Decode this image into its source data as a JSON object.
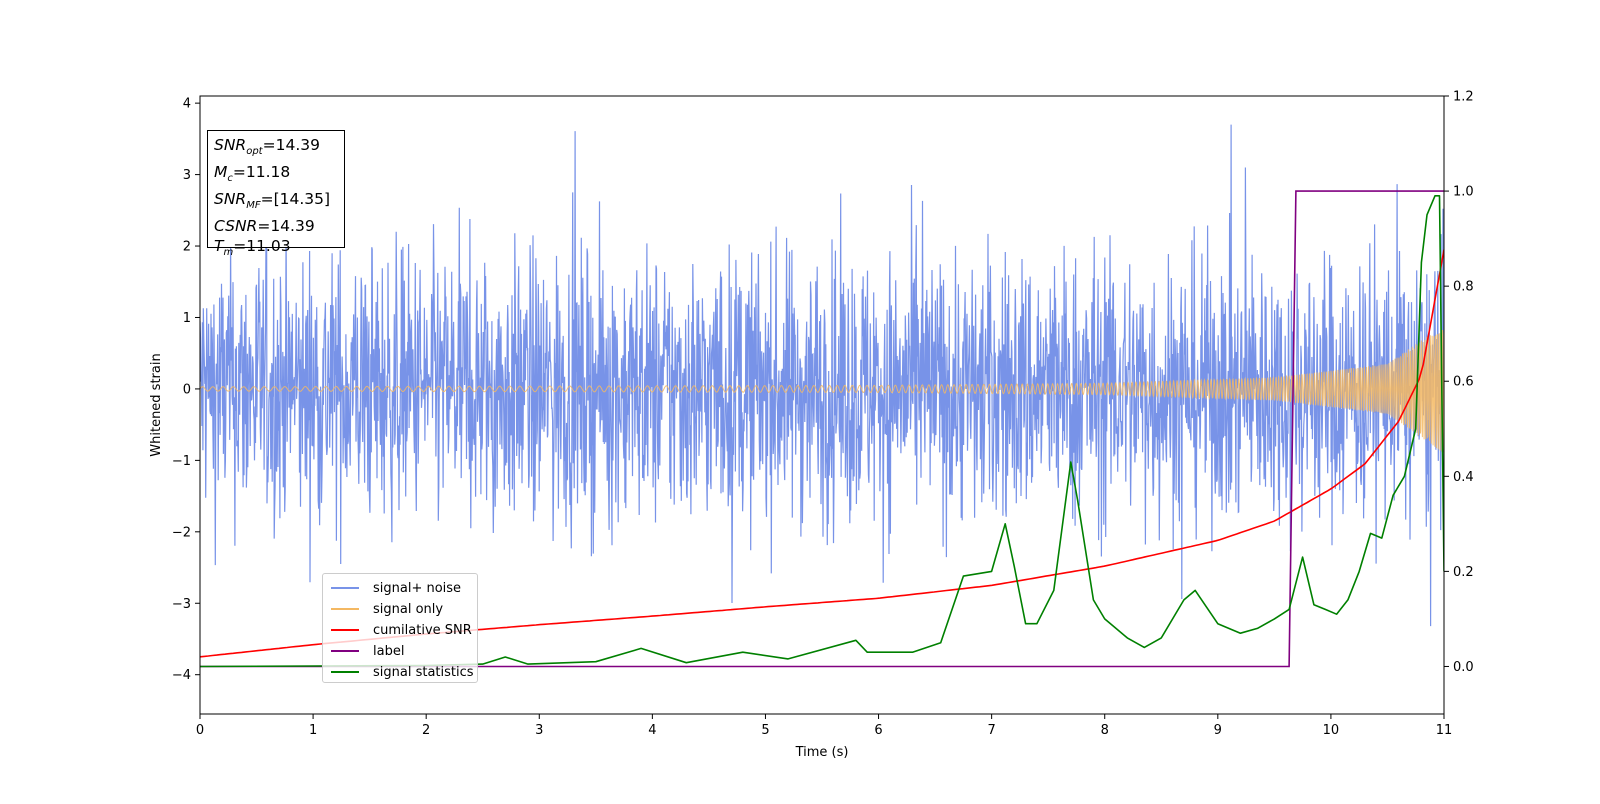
{
  "chart_data": {
    "type": "line",
    "xlabel": "Time (s)",
    "ylabel": "Whitened strain",
    "xlim": [
      0,
      11
    ],
    "ylim_left": [
      -4.55,
      4.1
    ],
    "ylim_right": [
      -0.1,
      1.2
    ],
    "x_ticks": [
      "0",
      "1",
      "2",
      "3",
      "4",
      "5",
      "6",
      "7",
      "8",
      "9",
      "10",
      "11"
    ],
    "y_ticks_left": [
      "−4",
      "−3",
      "−2",
      "−1",
      "0",
      "1",
      "2",
      "3",
      "4"
    ],
    "y_ticks_right": [
      "0.0",
      "0.2",
      "0.4",
      "0.6",
      "0.8",
      "1.0",
      "1.2"
    ],
    "series": [
      {
        "name": "signal+ noise",
        "color": "#7893e8",
        "axis": "left",
        "description": "noise band roughly -2.5..2.5 with spikes to about ±3.7"
      },
      {
        "name": "signal only",
        "color": "#f4b862",
        "axis": "left",
        "amplitude_envelope": {
          "x": [
            0,
            3,
            6,
            8,
            9.5,
            10.5,
            11
          ],
          "y": [
            0.03,
            0.04,
            0.05,
            0.08,
            0.16,
            0.35,
            0.9
          ]
        }
      },
      {
        "name": "cumilative SNR",
        "color": "#ff0000",
        "axis": "left",
        "x": [
          0,
          1,
          2,
          3,
          4,
          5,
          6,
          7,
          8,
          9,
          9.5,
          10,
          10.3,
          10.6,
          10.8,
          11
        ],
        "y": [
          -3.75,
          -3.58,
          -3.43,
          -3.3,
          -3.18,
          -3.05,
          -2.93,
          -2.75,
          -2.48,
          -2.12,
          -1.85,
          -1.4,
          -1.05,
          -0.45,
          0.2,
          1.95
        ]
      },
      {
        "name": "label",
        "color": "#800080",
        "axis": "right",
        "x": [
          0,
          9.63,
          9.69,
          11
        ],
        "y": [
          0,
          0,
          1,
          1
        ]
      },
      {
        "name": "signal statistics",
        "color": "#008000",
        "axis": "right",
        "x": [
          0,
          1,
          2,
          2.5,
          2.7,
          2.9,
          3.5,
          3.9,
          4.3,
          4.8,
          5.2,
          5.8,
          5.9,
          6.3,
          6.55,
          6.75,
          7.0,
          7.12,
          7.2,
          7.3,
          7.4,
          7.55,
          7.7,
          7.76,
          7.9,
          8.0,
          8.2,
          8.35,
          8.5,
          8.7,
          8.8,
          9.0,
          9.2,
          9.35,
          9.5,
          9.63,
          9.75,
          9.85,
          9.95,
          10.05,
          10.15,
          10.25,
          10.35,
          10.45,
          10.55,
          10.65,
          10.75,
          10.8,
          10.85,
          10.92,
          10.96,
          11.0
        ],
        "y": [
          0,
          0.001,
          0.002,
          0.005,
          0.02,
          0.005,
          0.01,
          0.038,
          0.008,
          0.03,
          0.016,
          0.055,
          0.03,
          0.03,
          0.05,
          0.19,
          0.2,
          0.3,
          0.21,
          0.09,
          0.09,
          0.16,
          0.43,
          0.35,
          0.14,
          0.1,
          0.06,
          0.04,
          0.06,
          0.14,
          0.16,
          0.09,
          0.07,
          0.08,
          0.1,
          0.12,
          0.23,
          0.13,
          0.12,
          0.11,
          0.14,
          0.2,
          0.28,
          0.27,
          0.36,
          0.4,
          0.5,
          0.85,
          0.95,
          0.99,
          0.99,
          0.2
        ]
      }
    ],
    "legend_position": "lower left",
    "annotations": {
      "snr_opt": {
        "label": "SNR",
        "sub": "opt",
        "value": "=14.39"
      },
      "mc": {
        "label": "M",
        "sub": "c",
        "value": "=11.18"
      },
      "snr_mf": {
        "label": "SNR",
        "sub": "MF",
        "value": "=[14.35]"
      },
      "csnr": {
        "label": "CSNR",
        "value": "=14.39"
      },
      "tm": {
        "label": "T",
        "sub": "m",
        "value": "=11.03"
      }
    }
  }
}
